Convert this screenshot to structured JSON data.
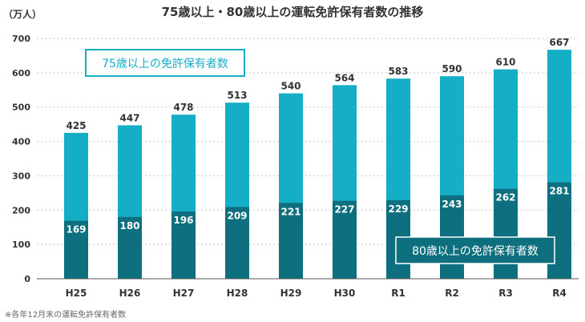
{
  "chart_data": {
    "type": "bar",
    "title": "75歳以上・80歳以上の運転免許保有者数の推移",
    "ylabel": "（万人）",
    "ylim": [
      0,
      700
    ],
    "yticks": [
      0,
      100,
      200,
      300,
      400,
      500,
      600,
      700
    ],
    "grid": true,
    "categories": [
      "H25",
      "H26",
      "H27",
      "H28",
      "H29",
      "H30",
      "R1",
      "R2",
      "R3",
      "R4"
    ],
    "series": [
      {
        "name": "75歳以上の免許保有者数",
        "values": [
          425,
          447,
          478,
          513,
          540,
          564,
          583,
          590,
          610,
          667
        ],
        "color": "#14aec6"
      },
      {
        "name": "80歳以上の免許保有者数",
        "values": [
          169,
          180,
          196,
          209,
          221,
          227,
          229,
          243,
          262,
          281
        ],
        "color": "#0e6f7e"
      }
    ],
    "footnote": "※各年12月末の運転免許保有者数"
  }
}
